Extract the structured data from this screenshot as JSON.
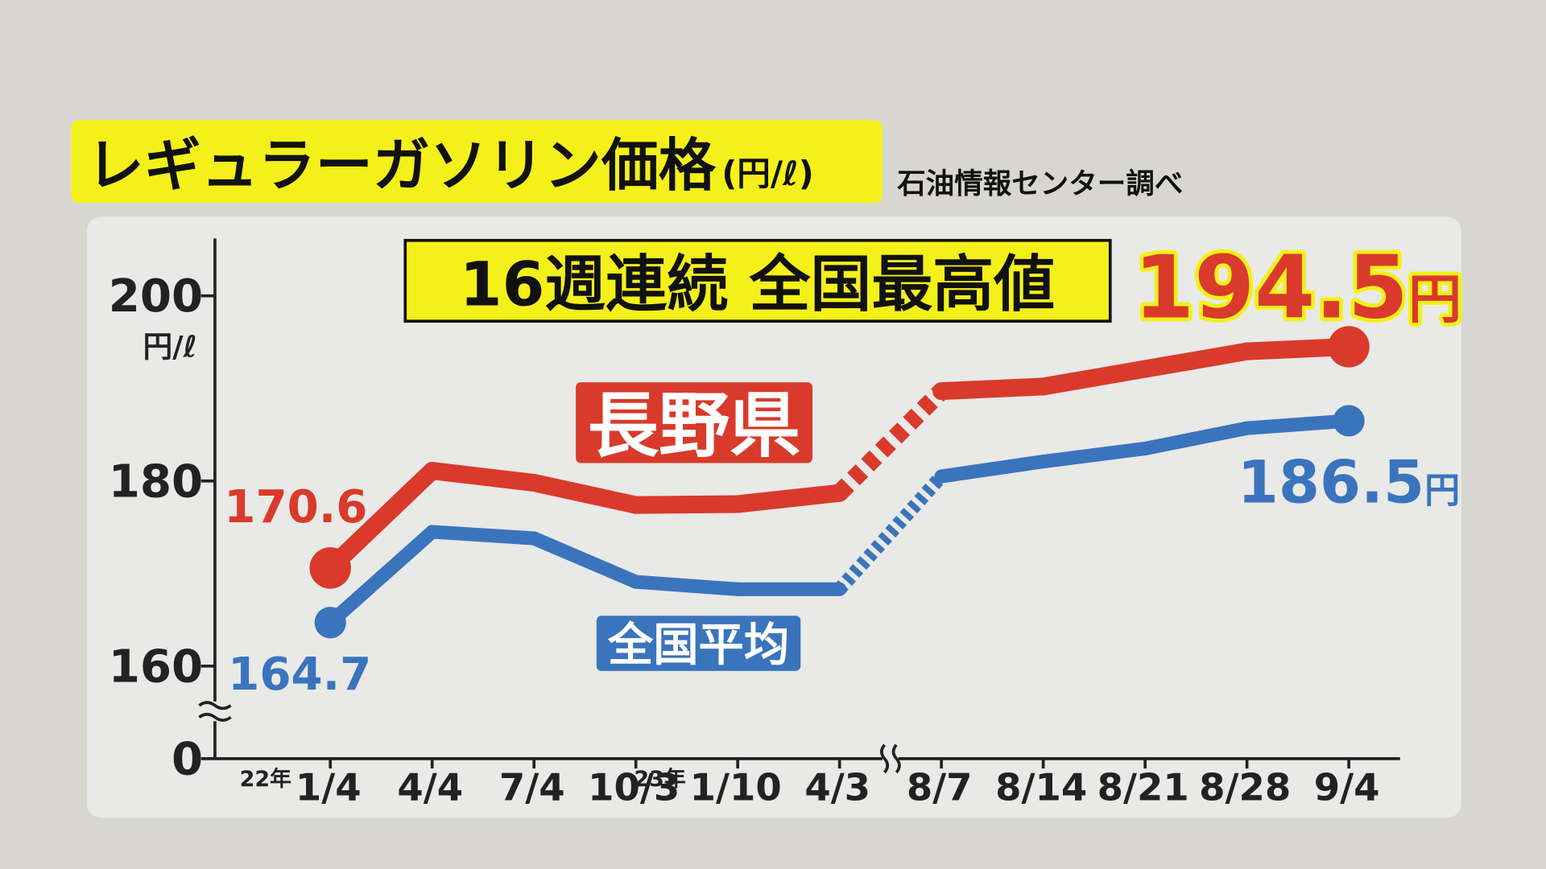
{
  "chart_data": {
    "type": "line",
    "title": "レギュラーガソリン価格",
    "title_unit": "(円/ℓ)",
    "source": "石油情報センター調べ",
    "annotation": "16週連続 全国最高値",
    "y_unit": "円/ℓ",
    "label_unit": "円",
    "categories": [
      "1/4",
      "4/4",
      "7/4",
      "10/3",
      "1/10",
      "4/3",
      "8/7",
      "8/14",
      "8/21",
      "8/28",
      "9/4"
    ],
    "years": [
      "22年",
      null,
      null,
      null,
      "23年",
      null,
      null,
      null,
      null,
      null,
      null
    ],
    "axis_break_after": "4/3",
    "y_axis_break": true,
    "series": [
      {
        "name": "長野県",
        "color": "#d93a2b",
        "values": [
          170.6,
          181.1,
          179.8,
          177.4,
          177.5,
          178.7,
          189.7,
          190.2,
          192.1,
          194.0,
          194.5
        ],
        "value_labels": [
          "170.6",
          null,
          null,
          null,
          null,
          null,
          null,
          null,
          null,
          null,
          "194.5"
        ]
      },
      {
        "name": "全国平均",
        "color": "#3a74bd",
        "values": [
          164.7,
          174.5,
          173.8,
          169.1,
          168.3,
          168.3,
          180.5,
          182.1,
          183.5,
          185.7,
          186.5
        ],
        "value_labels": [
          "164.7",
          null,
          null,
          null,
          null,
          null,
          null,
          null,
          null,
          null,
          "186.5"
        ]
      }
    ],
    "ylim": [
      150,
      206.2
    ],
    "yticks": [
      0,
      160,
      180,
      200
    ]
  }
}
